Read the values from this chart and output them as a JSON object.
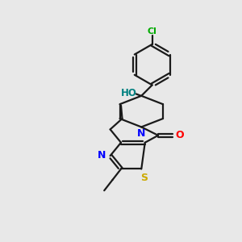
{
  "background_color": "#e8e8e8",
  "bond_color": "#1a1a1a",
  "N_color": "#0000ff",
  "O_color": "#ff0000",
  "S_color": "#ccaa00",
  "Cl_color": "#00aa00",
  "HO_color": "#008080",
  "figsize": [
    3.0,
    3.0
  ],
  "dpi": 100,
  "xlim": [
    0,
    10
  ],
  "ylim": [
    0,
    10
  ]
}
